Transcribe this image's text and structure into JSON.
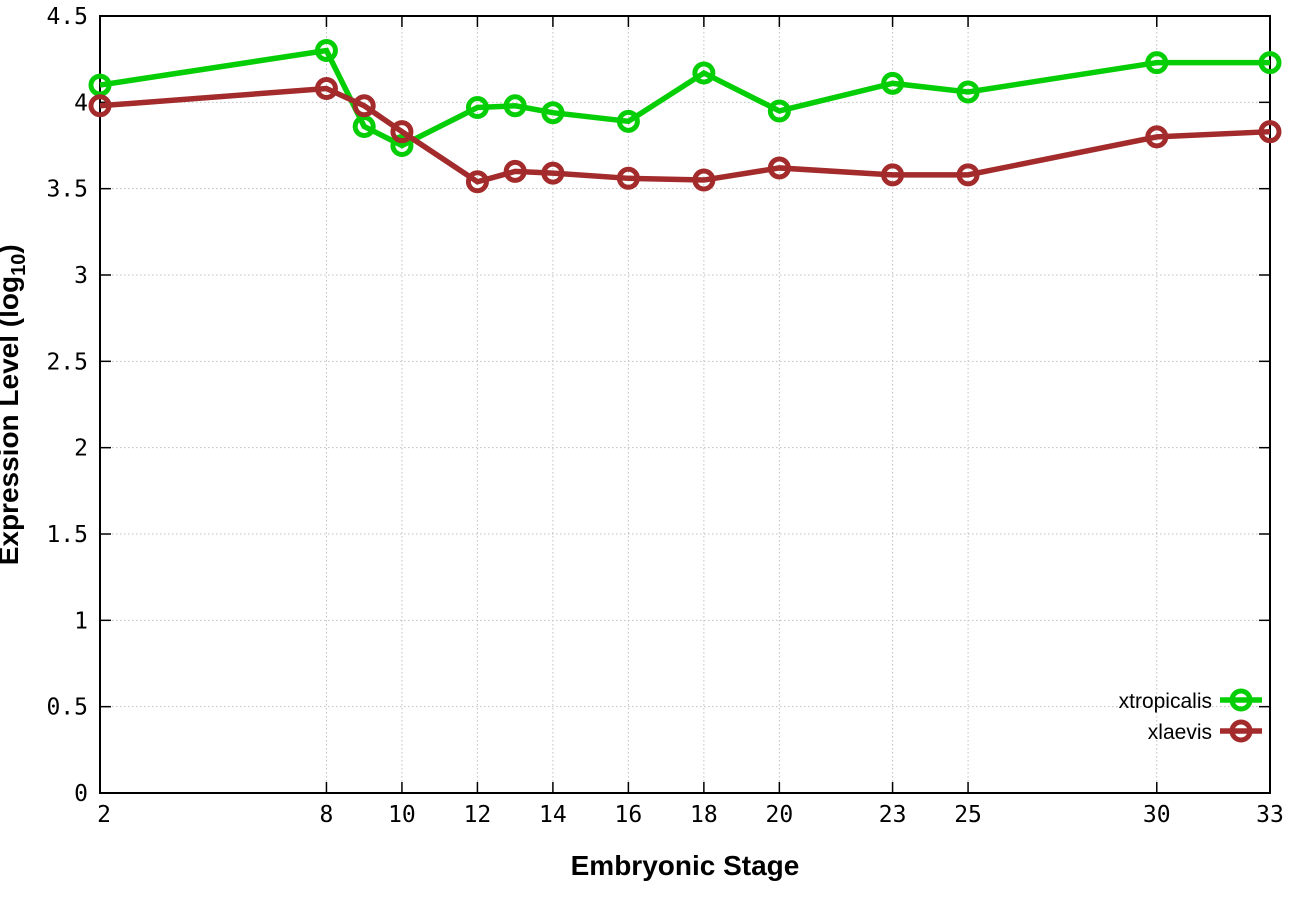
{
  "figure": {
    "background": "#ffffff",
    "grid_color": "#c0c0c0",
    "axis_color": "#000000",
    "xlabel": "Embryonic Stage",
    "ylabel_prefix": "Expression Level (log",
    "ylabel_sub": "10",
    "ylabel_suffix": ")"
  },
  "chart_data": {
    "type": "line",
    "title": "",
    "xlabel": "Embryonic Stage",
    "ylabel": "Expression Level (log10)",
    "xlim": [
      2,
      33
    ],
    "ylim": [
      0,
      4.5
    ],
    "grid": true,
    "legend_position": "inside-bottom-right",
    "x": [
      2,
      8,
      9,
      10,
      12,
      13,
      14,
      16,
      18,
      20,
      23,
      25,
      30,
      33
    ],
    "xticks": [
      2,
      8,
      10,
      12,
      14,
      16,
      18,
      20,
      23,
      25,
      30,
      33
    ],
    "xtick_labels": [
      "2",
      "8",
      "10",
      "12",
      "14",
      "16",
      "18",
      "20",
      "23",
      "25",
      "30",
      "33"
    ],
    "yticks": [
      0,
      0.5,
      1,
      1.5,
      2,
      2.5,
      3,
      3.5,
      4,
      4.5
    ],
    "ytick_labels": [
      "0",
      "0.5",
      "1",
      "1.5",
      "2",
      "2.5",
      "3",
      "3.5",
      "4",
      "4.5"
    ],
    "series": [
      {
        "name": "xtropicalis",
        "color": "#06ce06",
        "marker": "open-circle",
        "values": [
          4.1,
          4.3,
          3.86,
          3.75,
          3.97,
          3.98,
          3.94,
          3.89,
          4.17,
          3.95,
          4.11,
          4.06,
          4.23,
          4.23
        ]
      },
      {
        "name": "xlaevis",
        "color": "#a32b2b",
        "marker": "open-circle",
        "values": [
          3.98,
          4.08,
          3.98,
          3.83,
          3.54,
          3.6,
          3.59,
          3.56,
          3.55,
          3.62,
          3.58,
          3.58,
          3.8,
          3.83
        ]
      }
    ]
  }
}
